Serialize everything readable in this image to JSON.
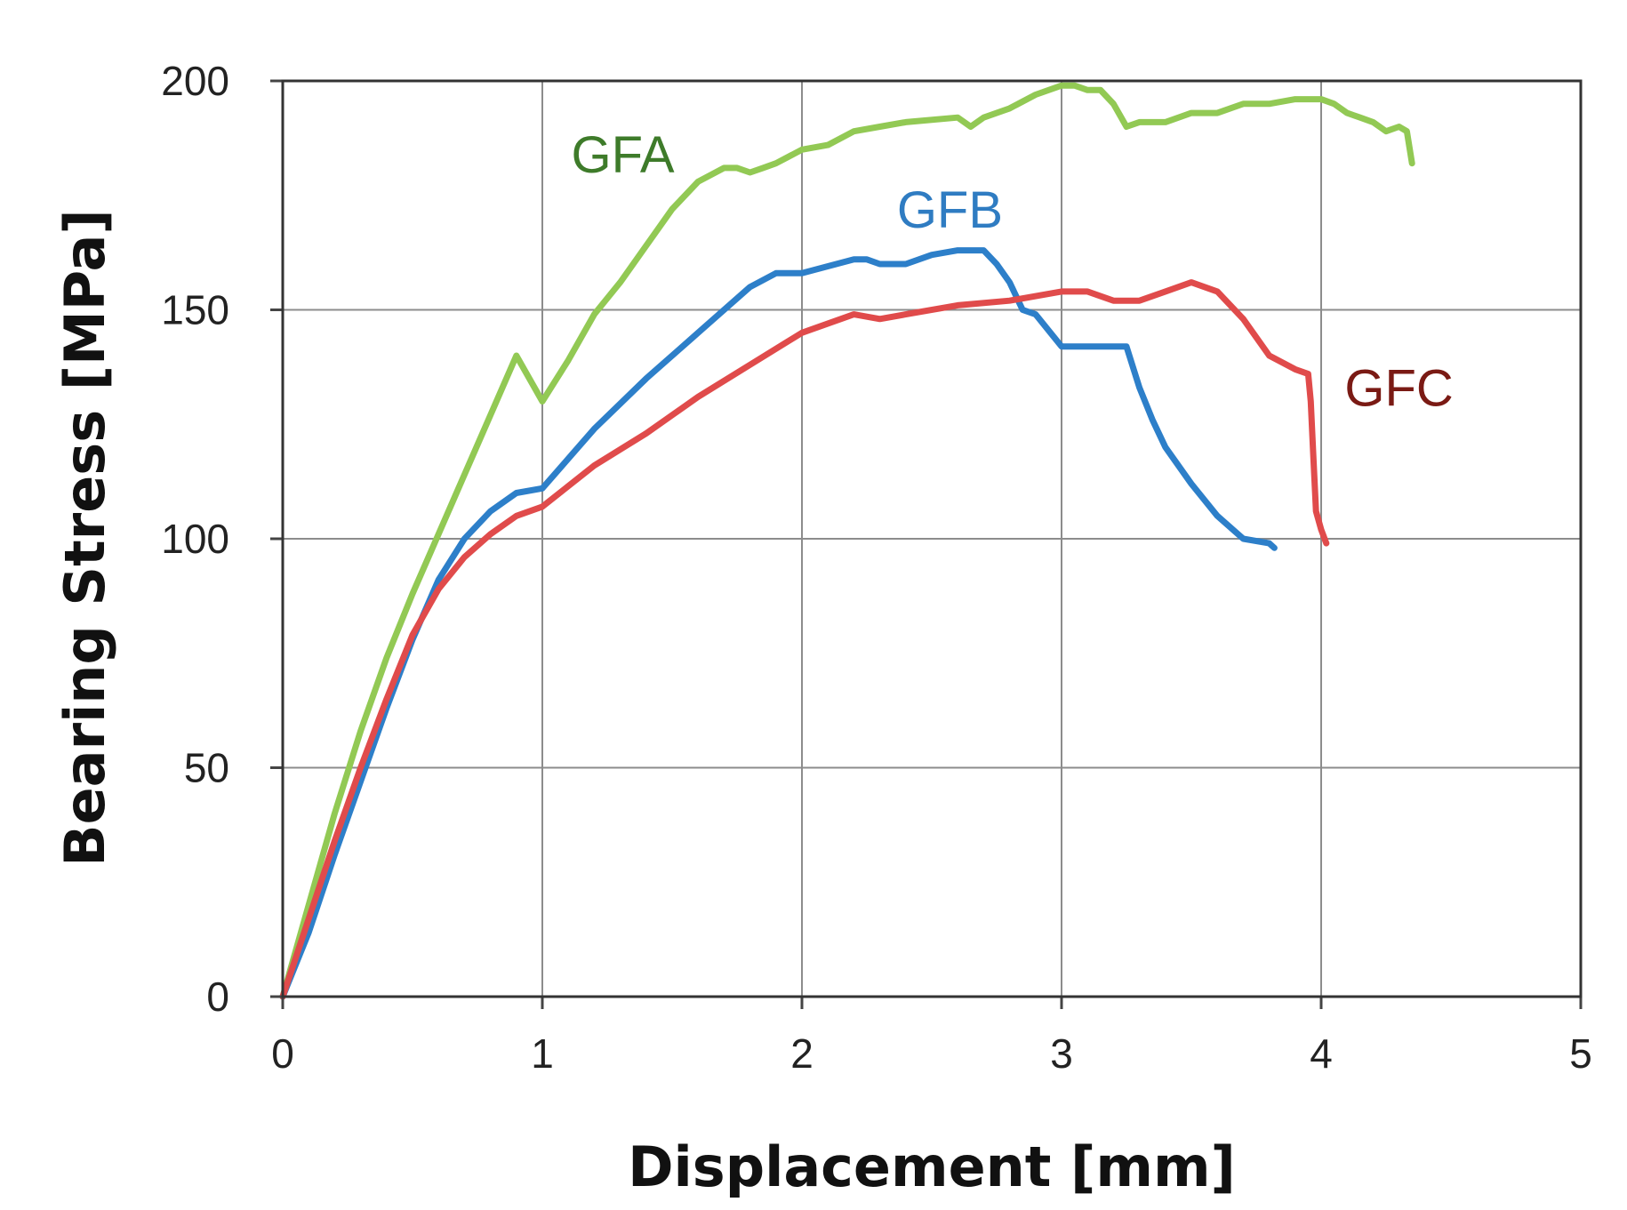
{
  "chart_data": {
    "type": "line",
    "xlabel": "Displacement [mm]",
    "ylabel": "Bearing Stress [MPa]",
    "xlim": [
      0,
      5
    ],
    "ylim": [
      0,
      200
    ],
    "x_ticks": [
      "0",
      "1",
      "2",
      "3",
      "4",
      "5"
    ],
    "y_ticks": [
      "0",
      "50",
      "100",
      "150",
      "200"
    ],
    "grid": true,
    "series": [
      {
        "name": "GFA",
        "line_color": "#92c954",
        "label_color": "#3e7b2a",
        "x": [
          0,
          0.1,
          0.2,
          0.3,
          0.4,
          0.5,
          0.6,
          0.7,
          0.8,
          0.9,
          1.0,
          1.1,
          1.2,
          1.3,
          1.4,
          1.5,
          1.6,
          1.7,
          1.75,
          1.8,
          1.85,
          1.9,
          2.0,
          2.1,
          2.2,
          2.3,
          2.4,
          2.6,
          2.65,
          2.7,
          2.8,
          2.9,
          3.0,
          3.05,
          3.1,
          3.15,
          3.2,
          3.25,
          3.3,
          3.4,
          3.5,
          3.6,
          3.7,
          3.8,
          3.9,
          4.0,
          4.05,
          4.1,
          4.15,
          4.2,
          4.25,
          4.3,
          4.33,
          4.35
        ],
        "y": [
          0,
          20,
          40,
          58,
          74,
          88,
          101,
          114,
          127,
          140,
          130,
          139,
          149,
          156,
          164,
          172,
          178,
          181,
          181,
          180,
          181,
          182,
          185,
          186,
          189,
          190,
          191,
          192,
          190,
          192,
          194,
          197,
          199,
          199,
          198,
          198,
          195,
          190,
          191,
          191,
          193,
          193,
          195,
          195,
          196,
          196,
          195,
          193,
          192,
          191,
          189,
          190,
          189,
          182
        ]
      },
      {
        "name": "GFB",
        "line_color": "#2d7fc9",
        "label_color": "#2f7cc2",
        "x": [
          0,
          0.1,
          0.2,
          0.3,
          0.4,
          0.5,
          0.6,
          0.7,
          0.8,
          0.9,
          1.0,
          1.2,
          1.4,
          1.6,
          1.8,
          1.9,
          2.0,
          2.2,
          2.25,
          2.3,
          2.4,
          2.5,
          2.6,
          2.7,
          2.75,
          2.8,
          2.85,
          2.9,
          3.0,
          3.1,
          3.2,
          3.25,
          3.3,
          3.35,
          3.4,
          3.5,
          3.6,
          3.7,
          3.8,
          3.82
        ],
        "y": [
          0,
          14,
          31,
          47,
          63,
          78,
          91,
          100,
          106,
          110,
          111,
          124,
          135,
          145,
          155,
          158,
          158,
          161,
          161,
          160,
          160,
          162,
          163,
          163,
          160,
          156,
          150,
          149,
          142,
          142,
          142,
          142,
          133,
          126,
          120,
          112,
          105,
          100,
          99,
          98
        ]
      },
      {
        "name": "GFC",
        "line_color": "#e04b4b",
        "label_color": "#7a1a14",
        "x": [
          0,
          0.1,
          0.2,
          0.3,
          0.4,
          0.5,
          0.6,
          0.7,
          0.8,
          0.9,
          1.0,
          1.2,
          1.4,
          1.6,
          1.8,
          2.0,
          2.2,
          2.3,
          2.4,
          2.6,
          2.8,
          3.0,
          3.1,
          3.2,
          3.3,
          3.4,
          3.5,
          3.6,
          3.7,
          3.8,
          3.9,
          3.95,
          3.96,
          3.97,
          3.98,
          4.0,
          4.02
        ],
        "y": [
          0,
          17,
          34,
          50,
          65,
          79,
          89,
          96,
          101,
          105,
          107,
          116,
          123,
          131,
          138,
          145,
          149,
          148,
          149,
          151,
          152,
          154,
          154,
          152,
          152,
          154,
          156,
          154,
          148,
          140,
          137,
          136,
          130,
          118,
          106,
          102,
          99
        ]
      }
    ]
  }
}
